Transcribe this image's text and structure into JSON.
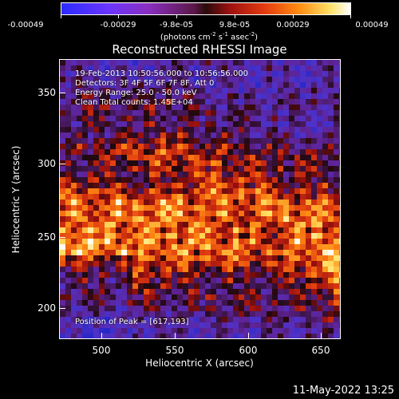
{
  "colorbar": {
    "ticks": [
      "-0.00049",
      "-0.00029",
      "-9.8e-05",
      "9.8e-05",
      "0.00029",
      "0.00049"
    ],
    "unit_text": "(photons cm",
    "unit_sup1": "-2",
    "unit_mid1": " s",
    "unit_sup2": "-1",
    "unit_mid2": " asec",
    "unit_sup3": "-2",
    "unit_end": ")"
  },
  "title": "Reconstructed RHESSI Image",
  "info": {
    "time": "19-Feb-2013 10:50:56.000 to 10:56:56.000",
    "detectors": "Detectors: 3F 4F 5F 6F 7F 8F, Att 0",
    "energy": "Energy Range: 25.0 - 50.0 keV",
    "clean": "Clean     Total counts: 1.45E+04",
    "peak": "Position of Peak = [617,193]"
  },
  "axes": {
    "xlabel": "Heliocentric X (arcsec)",
    "ylabel": "Heliocentric Y (arcsec)",
    "xticks": [
      "500",
      "550",
      "600",
      "650"
    ],
    "yticks": [
      "350",
      "300",
      "250",
      "200"
    ]
  },
  "footer": "11-May-2022 13:25",
  "colors": {
    "background": "#000000",
    "text": "#ffffff"
  }
}
